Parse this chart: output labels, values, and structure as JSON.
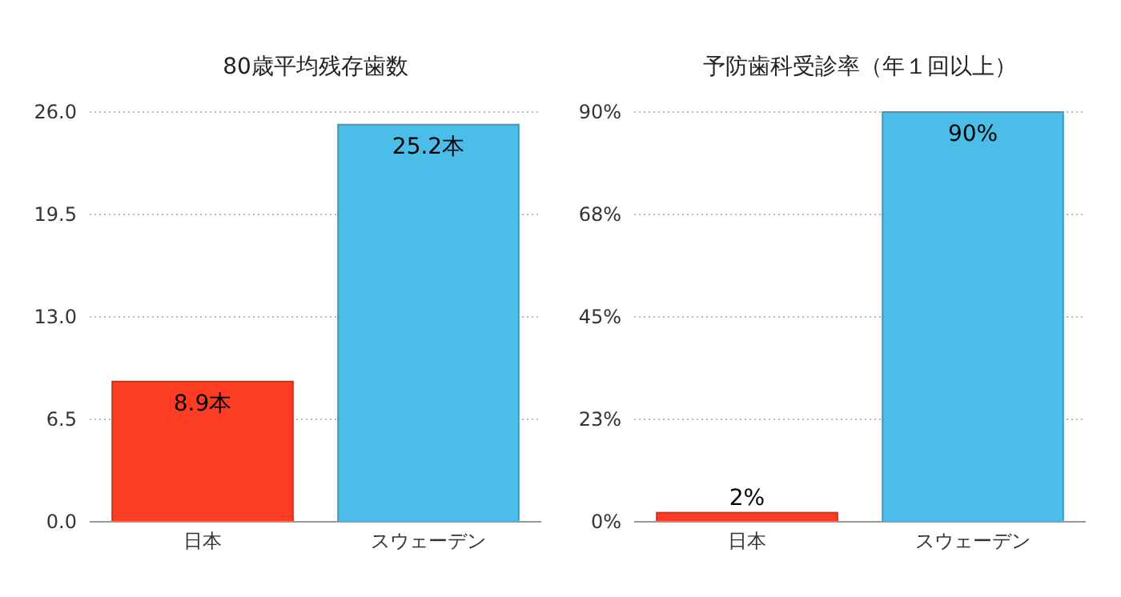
{
  "chart_data": [
    {
      "type": "bar",
      "title": "80歳平均残存歯数",
      "categories": [
        "日本",
        "スウェーデン"
      ],
      "values": [
        8.9,
        25.2
      ],
      "colors": [
        "#fd3c24",
        "#4bbde9"
      ],
      "value_labels": [
        "8.9本",
        "25.2本"
      ],
      "ylim": [
        0,
        26
      ],
      "yticks": [
        {
          "value": 0,
          "label": "0.0"
        },
        {
          "value": 6.5,
          "label": "6.5"
        },
        {
          "value": 13,
          "label": "13.0"
        },
        {
          "value": 19.5,
          "label": "19.5"
        },
        {
          "value": 26,
          "label": "26.0"
        }
      ],
      "grid": "y"
    },
    {
      "type": "bar",
      "title": "予防歯科受診率（年１回以上）",
      "categories": [
        "日本",
        "スウェーデン"
      ],
      "values": [
        2,
        90
      ],
      "colors": [
        "#fd3c24",
        "#4bbde9"
      ],
      "value_labels": [
        "2%",
        "90%"
      ],
      "ylim": [
        0,
        90
      ],
      "yticks": [
        {
          "value": 0,
          "label": "0%"
        },
        {
          "value": 22.5,
          "label": "23%"
        },
        {
          "value": 45,
          "label": "45%"
        },
        {
          "value": 67.5,
          "label": "68%"
        },
        {
          "value": 90,
          "label": "90%"
        }
      ],
      "grid": "y"
    }
  ]
}
